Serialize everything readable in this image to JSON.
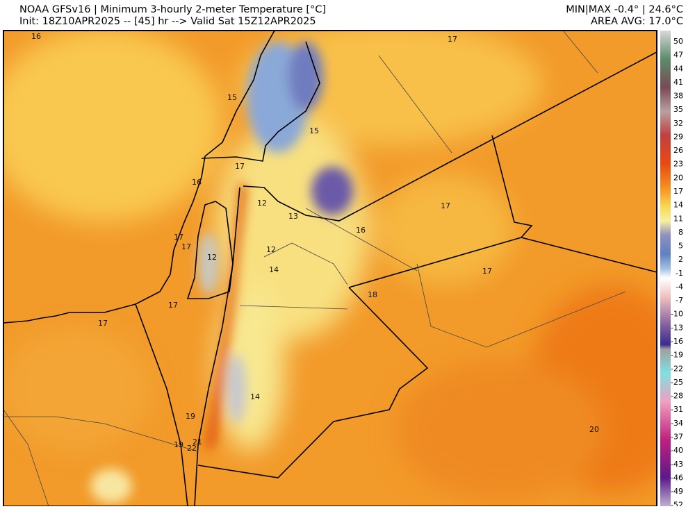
{
  "header": {
    "title": "NOAA GFSv16 | Minimum 3-hourly 2-meter Temperature [°C]",
    "init": "Init: 18Z10APR2025 -- [45] hr --> Valid Sat 15Z12APR2025",
    "minmax": "MIN|MAX -0.4° | 24.6°C",
    "area_avg": "AREA AVG: 17.0°C"
  },
  "map": {
    "labels": [
      "16",
      "17",
      "15",
      "15",
      "17",
      "16",
      "12",
      "13",
      "17",
      "16",
      "17",
      "17",
      "12",
      "12",
      "14",
      "17",
      "18",
      "17",
      "17",
      "14",
      "19",
      "19",
      "21",
      "22",
      "20"
    ]
  },
  "colorbar": {
    "ticks": [
      "50",
      "47",
      "44",
      "41",
      "38",
      "35",
      "32",
      "29",
      "26",
      "23",
      "20",
      "17",
      "14",
      "11",
      "8",
      "5",
      "2",
      "-1",
      "-4",
      "-7",
      "-10",
      "-13",
      "-16",
      "-19",
      "-22",
      "-25",
      "-28",
      "-31",
      "-34",
      "-37",
      "-40",
      "-43",
      "-46",
      "-49",
      "-52"
    ]
  }
}
